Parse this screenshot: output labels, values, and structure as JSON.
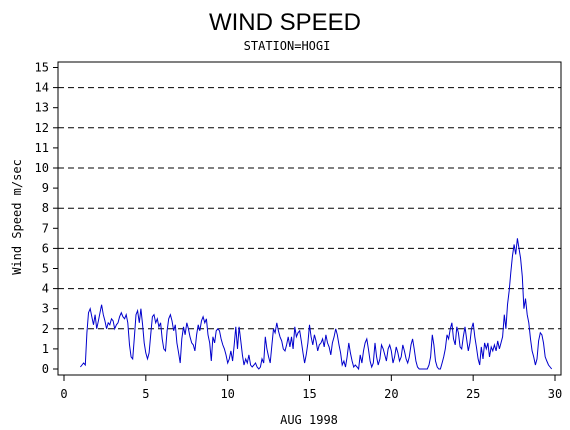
{
  "chart_data": {
    "type": "line",
    "title": "WIND SPEED",
    "subtitle": "STATION=HOGI",
    "xlabel": "AUG 1998",
    "ylabel": "Wind Speed m/sec",
    "xlim": [
      0,
      30
    ],
    "ylim": [
      0,
      15.4
    ],
    "x_ticks": [
      0,
      5,
      10,
      15,
      20,
      25,
      30
    ],
    "y_ticks": [
      0,
      1,
      2,
      3,
      4,
      5,
      6,
      7,
      8,
      9,
      10,
      11,
      12,
      13,
      14,
      15
    ],
    "reference_lines": [
      2,
      4,
      6,
      8,
      10,
      12,
      14
    ],
    "grid": false,
    "line_color": "#0000cc",
    "series": [
      {
        "points": [
          [
            1.0,
            0.1
          ],
          [
            1.1,
            0.2
          ],
          [
            1.2,
            0.3
          ],
          [
            1.3,
            0.2
          ],
          [
            1.4,
            1.8
          ],
          [
            1.5,
            2.8
          ],
          [
            1.6,
            3.0
          ],
          [
            1.7,
            2.6
          ],
          [
            1.8,
            2.2
          ],
          [
            1.9,
            2.7
          ],
          [
            2.0,
            2.0
          ],
          [
            2.1,
            2.4
          ],
          [
            2.2,
            2.8
          ],
          [
            2.3,
            3.2
          ],
          [
            2.4,
            2.7
          ],
          [
            2.5,
            2.4
          ],
          [
            2.6,
            2.0
          ],
          [
            2.7,
            2.3
          ],
          [
            2.8,
            2.2
          ],
          [
            2.9,
            2.5
          ],
          [
            3.0,
            2.4
          ],
          [
            3.1,
            2.0
          ],
          [
            3.2,
            2.2
          ],
          [
            3.3,
            2.3
          ],
          [
            3.4,
            2.6
          ],
          [
            3.5,
            2.8
          ],
          [
            3.6,
            2.6
          ],
          [
            3.7,
            2.5
          ],
          [
            3.8,
            2.7
          ],
          [
            3.9,
            2.3
          ],
          [
            4.0,
            1.2
          ],
          [
            4.1,
            0.6
          ],
          [
            4.2,
            0.5
          ],
          [
            4.3,
            1.6
          ],
          [
            4.4,
            2.7
          ],
          [
            4.5,
            2.9
          ],
          [
            4.6,
            2.3
          ],
          [
            4.7,
            3.0
          ],
          [
            4.8,
            2.2
          ],
          [
            4.9,
            1.3
          ],
          [
            5.0,
            0.8
          ],
          [
            5.1,
            0.5
          ],
          [
            5.2,
            0.8
          ],
          [
            5.3,
            1.7
          ],
          [
            5.4,
            2.6
          ],
          [
            5.5,
            2.7
          ],
          [
            5.6,
            2.3
          ],
          [
            5.7,
            2.5
          ],
          [
            5.8,
            2.1
          ],
          [
            5.9,
            2.3
          ],
          [
            6.0,
            1.5
          ],
          [
            6.1,
            1.0
          ],
          [
            6.2,
            0.9
          ],
          [
            6.3,
            1.9
          ],
          [
            6.4,
            2.5
          ],
          [
            6.5,
            2.7
          ],
          [
            6.6,
            2.4
          ],
          [
            6.7,
            1.9
          ],
          [
            6.8,
            2.2
          ],
          [
            6.9,
            1.3
          ],
          [
            7.0,
            0.8
          ],
          [
            7.1,
            0.3
          ],
          [
            7.2,
            1.5
          ],
          [
            7.3,
            2.1
          ],
          [
            7.4,
            1.7
          ],
          [
            7.5,
            2.3
          ],
          [
            7.6,
            2.0
          ],
          [
            7.7,
            1.6
          ],
          [
            7.8,
            1.3
          ],
          [
            7.9,
            1.2
          ],
          [
            8.0,
            0.9
          ],
          [
            8.1,
            1.7
          ],
          [
            8.2,
            2.2
          ],
          [
            8.3,
            1.9
          ],
          [
            8.4,
            2.4
          ],
          [
            8.5,
            2.6
          ],
          [
            8.6,
            2.3
          ],
          [
            8.7,
            2.5
          ],
          [
            8.8,
            1.7
          ],
          [
            8.9,
            1.3
          ],
          [
            9.0,
            0.4
          ],
          [
            9.1,
            1.6
          ],
          [
            9.2,
            1.3
          ],
          [
            9.3,
            1.9
          ],
          [
            9.4,
            2.0
          ],
          [
            9.5,
            1.9
          ],
          [
            9.6,
            1.5
          ],
          [
            9.7,
            1.2
          ],
          [
            9.8,
            1.0
          ],
          [
            9.9,
            0.7
          ],
          [
            10.0,
            0.3
          ],
          [
            10.1,
            0.5
          ],
          [
            10.2,
            0.9
          ],
          [
            10.3,
            0.4
          ],
          [
            10.4,
            1.2
          ],
          [
            10.5,
            2.1
          ],
          [
            10.6,
            1.0
          ],
          [
            10.7,
            2.1
          ],
          [
            10.8,
            1.4
          ],
          [
            10.9,
            0.7
          ],
          [
            11.0,
            0.2
          ],
          [
            11.1,
            0.5
          ],
          [
            11.2,
            0.3
          ],
          [
            11.3,
            0.7
          ],
          [
            11.4,
            0.2
          ],
          [
            11.5,
            0.1
          ],
          [
            11.6,
            0.2
          ],
          [
            11.7,
            0.3
          ],
          [
            11.8,
            0.1
          ],
          [
            11.9,
            0.0
          ],
          [
            12.0,
            0.1
          ],
          [
            12.1,
            0.5
          ],
          [
            12.2,
            0.3
          ],
          [
            12.3,
            1.6
          ],
          [
            12.4,
            1.0
          ],
          [
            12.5,
            0.6
          ],
          [
            12.6,
            0.3
          ],
          [
            12.7,
            1.2
          ],
          [
            12.8,
            2.0
          ],
          [
            12.9,
            1.8
          ],
          [
            13.0,
            2.3
          ],
          [
            13.1,
            1.9
          ],
          [
            13.2,
            1.6
          ],
          [
            13.3,
            1.4
          ],
          [
            13.4,
            1.0
          ],
          [
            13.5,
            0.9
          ],
          [
            13.6,
            1.2
          ],
          [
            13.7,
            1.6
          ],
          [
            13.8,
            1.1
          ],
          [
            13.9,
            1.6
          ],
          [
            14.0,
            1.0
          ],
          [
            14.1,
            2.1
          ],
          [
            14.2,
            1.6
          ],
          [
            14.3,
            1.8
          ],
          [
            14.4,
            1.9
          ],
          [
            14.5,
            1.4
          ],
          [
            14.6,
            0.8
          ],
          [
            14.7,
            0.3
          ],
          [
            14.8,
            0.7
          ],
          [
            14.9,
            1.3
          ],
          [
            15.0,
            2.2
          ],
          [
            15.1,
            1.6
          ],
          [
            15.2,
            1.2
          ],
          [
            15.3,
            1.7
          ],
          [
            15.4,
            1.4
          ],
          [
            15.5,
            0.9
          ],
          [
            15.6,
            1.2
          ],
          [
            15.7,
            1.3
          ],
          [
            15.8,
            1.5
          ],
          [
            15.9,
            1.1
          ],
          [
            16.0,
            1.7
          ],
          [
            16.1,
            1.3
          ],
          [
            16.2,
            1.1
          ],
          [
            16.3,
            0.7
          ],
          [
            16.4,
            1.3
          ],
          [
            16.5,
            1.6
          ],
          [
            16.6,
            2.0
          ],
          [
            16.7,
            1.7
          ],
          [
            16.8,
            1.2
          ],
          [
            16.9,
            0.8
          ],
          [
            17.0,
            0.2
          ],
          [
            17.1,
            0.4
          ],
          [
            17.2,
            0.1
          ],
          [
            17.3,
            0.6
          ],
          [
            17.4,
            1.3
          ],
          [
            17.5,
            0.8
          ],
          [
            17.6,
            0.4
          ],
          [
            17.7,
            0.1
          ],
          [
            17.8,
            0.2
          ],
          [
            17.9,
            0.1
          ],
          [
            18.0,
            0.0
          ],
          [
            18.1,
            0.7
          ],
          [
            18.2,
            0.3
          ],
          [
            18.3,
            0.9
          ],
          [
            18.4,
            1.3
          ],
          [
            18.5,
            1.5
          ],
          [
            18.6,
            1.0
          ],
          [
            18.7,
            0.4
          ],
          [
            18.8,
            0.1
          ],
          [
            18.9,
            0.3
          ],
          [
            19.0,
            1.3
          ],
          [
            19.1,
            0.6
          ],
          [
            19.2,
            0.2
          ],
          [
            19.3,
            0.5
          ],
          [
            19.4,
            1.2
          ],
          [
            19.5,
            1.0
          ],
          [
            19.6,
            0.7
          ],
          [
            19.7,
            0.4
          ],
          [
            19.8,
            1.0
          ],
          [
            19.9,
            1.2
          ],
          [
            20.0,
            0.9
          ],
          [
            20.1,
            0.3
          ],
          [
            20.2,
            0.6
          ],
          [
            20.3,
            1.1
          ],
          [
            20.4,
            0.8
          ],
          [
            20.5,
            0.4
          ],
          [
            20.6,
            0.6
          ],
          [
            20.7,
            1.2
          ],
          [
            20.8,
            0.9
          ],
          [
            20.9,
            0.5
          ],
          [
            21.0,
            0.3
          ],
          [
            21.1,
            0.6
          ],
          [
            21.2,
            1.2
          ],
          [
            21.3,
            1.5
          ],
          [
            21.4,
            1.0
          ],
          [
            21.5,
            0.4
          ],
          [
            21.6,
            0.1
          ],
          [
            21.7,
            0.0
          ],
          [
            21.8,
            0.0
          ],
          [
            21.9,
            0.0
          ],
          [
            22.0,
            0.0
          ],
          [
            22.1,
            0.0
          ],
          [
            22.2,
            0.0
          ],
          [
            22.3,
            0.2
          ],
          [
            22.4,
            0.6
          ],
          [
            22.5,
            1.7
          ],
          [
            22.6,
            1.2
          ],
          [
            22.7,
            0.4
          ],
          [
            22.8,
            0.1
          ],
          [
            22.9,
            0.0
          ],
          [
            23.0,
            0.0
          ],
          [
            23.1,
            0.3
          ],
          [
            23.2,
            0.6
          ],
          [
            23.3,
            1.0
          ],
          [
            23.4,
            1.7
          ],
          [
            23.5,
            1.5
          ],
          [
            23.6,
            2.0
          ],
          [
            23.7,
            2.3
          ],
          [
            23.8,
            1.5
          ],
          [
            23.9,
            1.2
          ],
          [
            24.0,
            2.1
          ],
          [
            24.1,
            1.8
          ],
          [
            24.2,
            1.1
          ],
          [
            24.3,
            1.0
          ],
          [
            24.4,
            1.6
          ],
          [
            24.5,
            2.1
          ],
          [
            24.6,
            1.5
          ],
          [
            24.7,
            0.9
          ],
          [
            24.8,
            1.3
          ],
          [
            24.9,
            2.0
          ],
          [
            25.0,
            2.3
          ],
          [
            25.1,
            1.6
          ],
          [
            25.2,
            1.1
          ],
          [
            25.3,
            0.5
          ],
          [
            25.4,
            0.2
          ],
          [
            25.5,
            1.1
          ],
          [
            25.6,
            0.5
          ],
          [
            25.7,
            1.3
          ],
          [
            25.8,
            1.0
          ],
          [
            25.9,
            1.3
          ],
          [
            26.0,
            0.6
          ],
          [
            26.1,
            1.1
          ],
          [
            26.2,
            0.9
          ],
          [
            26.3,
            1.2
          ],
          [
            26.4,
            0.9
          ],
          [
            26.5,
            1.4
          ],
          [
            26.6,
            1.0
          ],
          [
            26.7,
            1.3
          ],
          [
            26.8,
            1.6
          ],
          [
            26.9,
            2.7
          ],
          [
            27.0,
            2.0
          ],
          [
            27.1,
            3.2
          ],
          [
            27.2,
            3.9
          ],
          [
            27.3,
            4.8
          ],
          [
            27.4,
            5.6
          ],
          [
            27.5,
            6.2
          ],
          [
            27.6,
            5.7
          ],
          [
            27.7,
            6.5
          ],
          [
            27.8,
            6.0
          ],
          [
            27.9,
            5.5
          ],
          [
            28.0,
            4.6
          ],
          [
            28.1,
            3.0
          ],
          [
            28.2,
            3.5
          ],
          [
            28.3,
            2.7
          ],
          [
            28.4,
            2.3
          ],
          [
            28.5,
            1.5
          ],
          [
            28.6,
            0.9
          ],
          [
            28.7,
            0.6
          ],
          [
            28.8,
            0.2
          ],
          [
            28.9,
            0.5
          ],
          [
            29.0,
            1.4
          ],
          [
            29.1,
            1.8
          ],
          [
            29.2,
            1.7
          ],
          [
            29.3,
            1.3
          ],
          [
            29.4,
            0.6
          ],
          [
            29.5,
            0.4
          ],
          [
            29.6,
            0.2
          ],
          [
            29.7,
            0.1
          ],
          [
            29.8,
            0.0
          ]
        ]
      }
    ]
  }
}
